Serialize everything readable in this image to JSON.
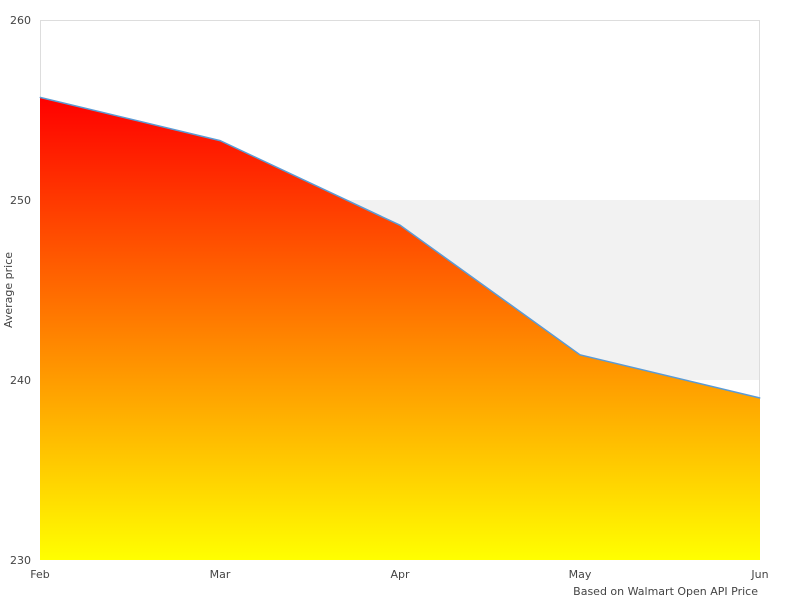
{
  "chart_data": {
    "type": "area",
    "title": "",
    "xlabel": "",
    "ylabel": "Average price",
    "credit": "Based on Walmart Open API Price",
    "categories": [
      "Feb",
      "Mar",
      "Apr",
      "May",
      "Jun"
    ],
    "values": [
      255.7,
      253.3,
      248.6,
      241.4,
      239.0
    ],
    "ylim": [
      230,
      260
    ],
    "yticks": [
      230,
      240,
      250,
      260
    ],
    "plot_band": [
      240,
      250
    ],
    "grid": false,
    "legend": "none",
    "colors": {
      "line": "#5b9bd5",
      "gradient_top": "#ff0000",
      "gradient_bottom": "#ffff00",
      "band": "#f2f2f2",
      "border": "#dddddd"
    }
  }
}
